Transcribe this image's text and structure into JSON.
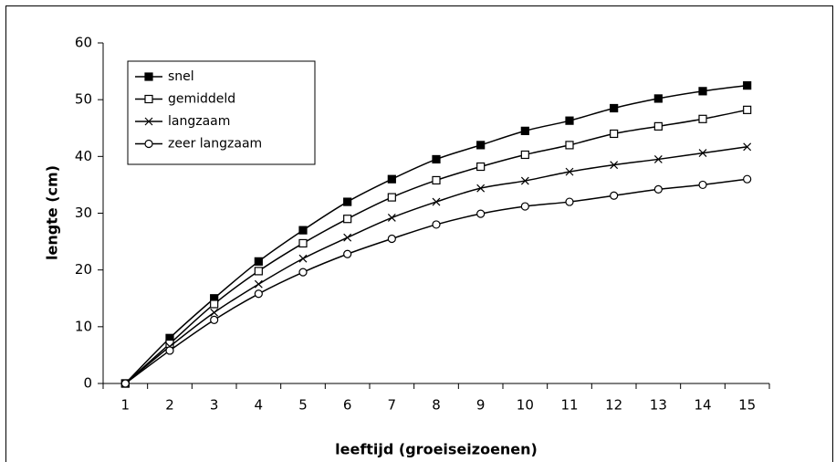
{
  "chart_data": {
    "type": "line",
    "x_label": "leeftijd (groeiseizoenen)",
    "y_label": "lengte (cm)",
    "categories": [
      "1",
      "2",
      "3",
      "4",
      "5",
      "6",
      "7",
      "8",
      "9",
      "10",
      "11",
      "12",
      "13",
      "14",
      "15"
    ],
    "series": [
      {
        "name": "snel",
        "color": "#000000",
        "marker": "filled-square",
        "values": [
          0,
          8,
          15,
          21.5,
          27,
          32,
          36,
          39.5,
          42,
          44.5,
          46.3,
          48.5,
          50.2,
          51.5,
          52.5
        ]
      },
      {
        "name": "gemiddeld",
        "color": "#000000",
        "marker": "open-square",
        "values": [
          0,
          7,
          14,
          19.8,
          24.7,
          29,
          32.8,
          35.8,
          38.2,
          40.3,
          42,
          44,
          45.3,
          46.6,
          48.2
        ]
      },
      {
        "name": "langzaam",
        "color": "#000000",
        "marker": "cross",
        "values": [
          0,
          6.5,
          12.5,
          17.5,
          22,
          25.7,
          29.2,
          32,
          34.4,
          35.7,
          37.3,
          38.5,
          39.5,
          40.6,
          41.7
        ]
      },
      {
        "name": "zeer langzaam",
        "color": "#000000",
        "marker": "open-circle",
        "values": [
          0,
          5.8,
          11.2,
          15.8,
          19.6,
          22.8,
          25.5,
          28,
          29.9,
          31.2,
          32,
          33.1,
          34.2,
          35,
          36
        ]
      }
    ],
    "ylim": [
      0,
      60
    ],
    "yticks": [
      0,
      10,
      20,
      30,
      40,
      50,
      60
    ],
    "grid": false,
    "legend": "upper left"
  }
}
